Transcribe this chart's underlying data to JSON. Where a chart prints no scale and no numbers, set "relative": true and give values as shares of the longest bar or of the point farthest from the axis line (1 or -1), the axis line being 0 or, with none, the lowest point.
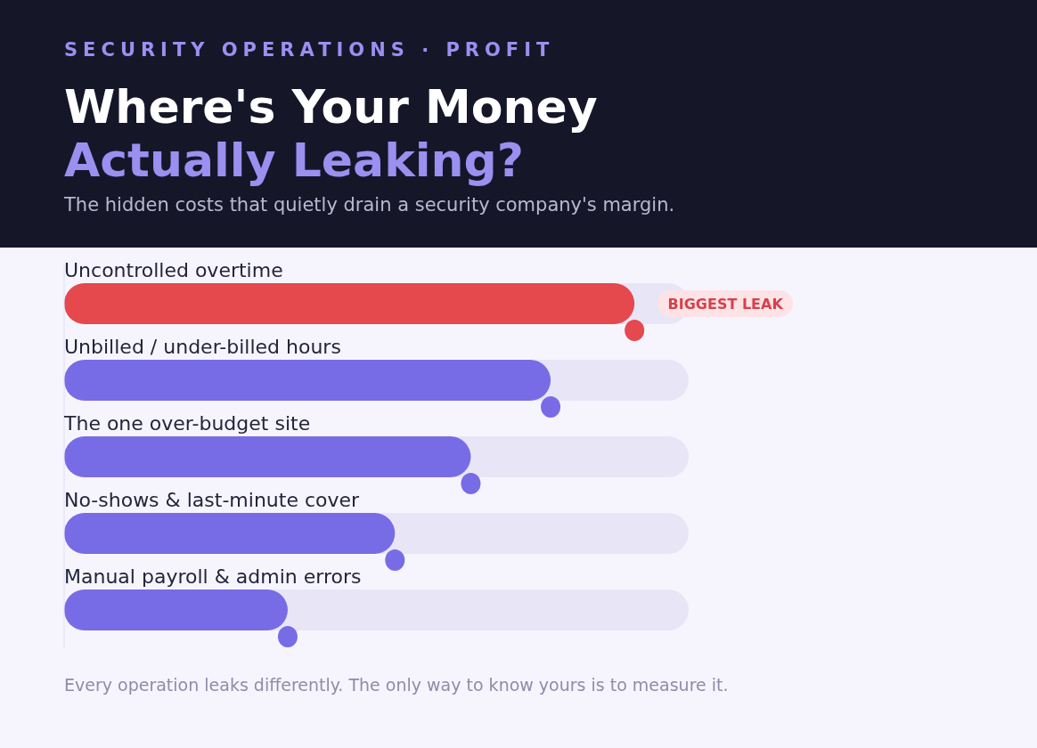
{
  "chart_data": {
    "type": "bar",
    "orientation": "horizontal",
    "relative": true,
    "title": "Where's Your Money Actually Leaking?",
    "subtitle": "The hidden costs that quietly drain a security company's margin.",
    "categories": [
      "Uncontrolled overtime",
      "Unbilled / under-billed hours",
      "The one over-budget site",
      "No-shows & last-minute cover",
      "Manual payroll & admin errors"
    ],
    "values": [
      1,
      0.853,
      0.713,
      0.58,
      0.392
    ],
    "colors": [
      "#e5484d",
      "#786ce6",
      "#786ce6",
      "#786ce6",
      "#786ce6"
    ],
    "annotations": [
      "SECURITY OPERATIONS · PROFIT",
      "Every operation leaks differently. The only way to know yours is to measure it.",
      {
        "text": "BIGGEST LEAK",
        "x": 1,
        "y": "Uncontrolled overtime"
      }
    ],
    "grid": false,
    "legend": false
  }
}
